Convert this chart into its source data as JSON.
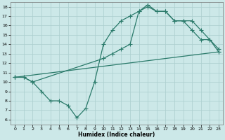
{
  "line1_x": [
    0,
    1,
    2,
    3,
    4,
    5,
    6,
    7,
    8,
    9,
    10,
    11,
    12,
    13,
    14,
    15,
    16,
    17,
    18,
    19,
    20,
    21,
    22,
    23
  ],
  "line1_y": [
    10.5,
    10.5,
    10.0,
    9.0,
    8.0,
    8.0,
    7.5,
    6.2,
    7.2,
    10.0,
    14.0,
    15.5,
    16.5,
    17.0,
    17.5,
    18.0,
    17.5,
    17.5,
    16.5,
    16.5,
    15.5,
    14.5,
    14.5,
    13.5
  ],
  "line2_x": [
    0,
    1,
    2,
    10,
    11,
    12,
    13,
    14,
    15,
    16,
    17,
    18,
    19,
    20,
    21,
    22,
    23
  ],
  "line2_y": [
    10.5,
    10.5,
    10.0,
    12.5,
    13.0,
    13.5,
    14.0,
    17.5,
    18.2,
    17.5,
    17.5,
    16.5,
    16.5,
    16.5,
    15.5,
    14.5,
    13.2
  ],
  "line3_x": [
    0,
    23
  ],
  "line3_y": [
    10.5,
    13.2
  ],
  "line_color": "#2a7a6a",
  "bg_color": "#cce8e8",
  "grid_color": "#aacece",
  "xlabel": "Humidex (Indice chaleur)",
  "xlim": [
    -0.5,
    23.5
  ],
  "ylim": [
    5.5,
    18.5
  ],
  "yticks": [
    6,
    7,
    8,
    9,
    10,
    11,
    12,
    13,
    14,
    15,
    16,
    17,
    18
  ],
  "xticks": [
    0,
    1,
    2,
    3,
    4,
    5,
    6,
    7,
    8,
    9,
    10,
    11,
    12,
    13,
    14,
    15,
    16,
    17,
    18,
    19,
    20,
    21,
    22,
    23
  ],
  "marker": "+",
  "markersize": 4,
  "linewidth": 0.9
}
